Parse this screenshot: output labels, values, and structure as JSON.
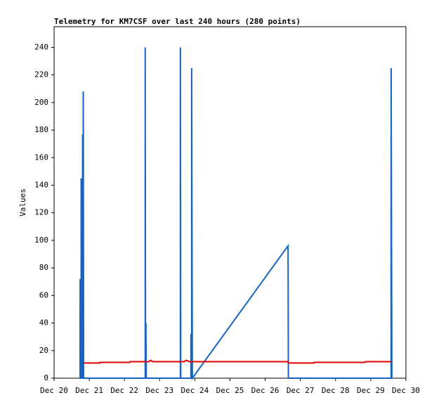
{
  "chart_data": {
    "type": "line",
    "title": "Telemetry for KM7CSF over last 240 hours (280 points)",
    "y_label": "Values",
    "xlim": [
      20,
      30
    ],
    "xticks": [
      {
        "value": 20,
        "label": "Dec 20"
      },
      {
        "value": 21,
        "label": "Dec 21"
      },
      {
        "value": 22,
        "label": "Dec 22"
      },
      {
        "value": 23,
        "label": "Dec 23"
      },
      {
        "value": 24,
        "label": "Dec 24"
      },
      {
        "value": 25,
        "label": "Dec 25"
      },
      {
        "value": 26,
        "label": "Dec 26"
      },
      {
        "value": 27,
        "label": "Dec 27"
      },
      {
        "value": 28,
        "label": "Dec 28"
      },
      {
        "value": 29,
        "label": "Dec 29"
      },
      {
        "value": 30,
        "label": "Dec 30"
      }
    ],
    "ylim": [
      0,
      255
    ],
    "yticks": [
      0,
      20,
      40,
      60,
      80,
      100,
      120,
      140,
      160,
      180,
      200,
      220,
      240
    ],
    "series": [
      {
        "color": "#1565c0",
        "x": [
          20.74,
          20.74,
          20.75,
          20.77,
          20.77,
          20.78,
          20.81,
          20.81,
          20.82,
          20.83,
          20.83,
          20.84,
          20.85,
          22.59,
          22.59,
          22.6,
          22.61,
          22.61,
          22.62,
          23.59,
          23.59,
          23.6,
          23.89,
          23.89,
          23.9,
          23.91,
          23.91,
          23.93,
          26.65,
          26.66,
          29.58,
          29.58,
          29.6
        ],
        "values": [
          0,
          72,
          0,
          0,
          145,
          0,
          0,
          177,
          0,
          0,
          208,
          0,
          0,
          0,
          240,
          0,
          0,
          40,
          0,
          0,
          240,
          0,
          0,
          32,
          0,
          0,
          225,
          0,
          96,
          0,
          0,
          225,
          0
        ]
      },
      {
        "color": "#e00000",
        "x": [
          20.83,
          21.3,
          21.31,
          22.15,
          22.16,
          22.7,
          22.74,
          22.8,
          23.7,
          23.75,
          23.85,
          26.65,
          26.66,
          27.38,
          27.39,
          28.84,
          28.85,
          29.6
        ],
        "values": [
          11,
          11,
          11.5,
          11.5,
          12,
          12,
          13,
          12,
          12,
          13,
          12,
          12,
          11,
          11,
          11.5,
          11.5,
          12,
          12
        ]
      }
    ]
  }
}
